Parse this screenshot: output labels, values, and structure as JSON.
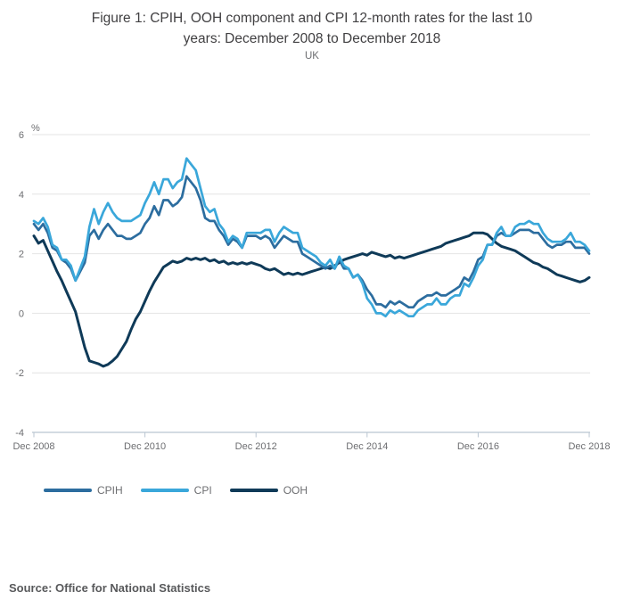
{
  "title": {
    "text": "Figure 1: CPIH, OOH component and CPI 12-month rates for the last 10 years: December 2008 to December 2018",
    "lines": [
      "Figure 1: CPIH, OOH component and CPI 12-month rates for the last 10",
      "years: December 2008 to December 2018"
    ]
  },
  "subtitle": "UK",
  "source": "Source: Office for National Statistics",
  "colors": {
    "cpih": "#2c6d9f",
    "cpi": "#3aa7da",
    "ooh": "#0f3a58",
    "gridline": "#e4e4e4",
    "axis": "#b9c5d1",
    "title_text": "#414042",
    "axis_text": "#6d6e71",
    "source_text": "#58595b"
  },
  "chart_data": {
    "type": "line",
    "title": "Figure 1: CPIH, OOH component and CPI 12-month rates for the last 10 years: December 2008 to December 2018",
    "subtitle": "UK",
    "ylabel": "%",
    "xlabel": "",
    "ylim": [
      -4,
      6
    ],
    "grid": "horizontal",
    "legend_position": "bottom-left",
    "x_start": "Dec 2008",
    "x_end": "Dec 2018",
    "x_frequency": "monthly",
    "x_tick_labels": [
      "Dec 2008",
      "Dec 2010",
      "Dec 2012",
      "Dec 2014",
      "Dec 2016",
      "Dec 2018"
    ],
    "y_ticks": [
      6,
      4,
      2,
      0,
      -2,
      -4
    ],
    "series": [
      {
        "name": "CPIH",
        "color": "#2c6d9f",
        "values": [
          3.0,
          2.8,
          3.0,
          2.7,
          2.2,
          2.1,
          1.8,
          1.7,
          1.5,
          1.1,
          1.4,
          1.7,
          2.6,
          2.8,
          2.5,
          2.8,
          3.0,
          2.8,
          2.6,
          2.6,
          2.5,
          2.5,
          2.6,
          2.7,
          3.0,
          3.2,
          3.6,
          3.3,
          3.8,
          3.8,
          3.6,
          3.7,
          3.9,
          4.6,
          4.4,
          4.2,
          3.8,
          3.2,
          3.1,
          3.1,
          2.8,
          2.6,
          2.3,
          2.5,
          2.4,
          2.2,
          2.6,
          2.6,
          2.6,
          2.5,
          2.6,
          2.5,
          2.2,
          2.4,
          2.6,
          2.5,
          2.4,
          2.4,
          2.0,
          1.9,
          1.8,
          1.7,
          1.6,
          1.5,
          1.6,
          1.5,
          1.8,
          1.5,
          1.5,
          1.2,
          1.3,
          1.1,
          0.8,
          0.6,
          0.3,
          0.3,
          0.2,
          0.4,
          0.3,
          0.4,
          0.3,
          0.2,
          0.2,
          0.4,
          0.5,
          0.6,
          0.6,
          0.7,
          0.6,
          0.6,
          0.7,
          0.8,
          0.9,
          1.2,
          1.1,
          1.4,
          1.8,
          1.9,
          2.3,
          2.3,
          2.6,
          2.7,
          2.6,
          2.6,
          2.7,
          2.8,
          2.8,
          2.8,
          2.7,
          2.7,
          2.5,
          2.3,
          2.2,
          2.3,
          2.3,
          2.4,
          2.4,
          2.2,
          2.2,
          2.2,
          2.0
        ]
      },
      {
        "name": "CPI",
        "color": "#3aa7da",
        "values": [
          3.1,
          3.0,
          3.2,
          2.9,
          2.3,
          2.2,
          1.8,
          1.8,
          1.6,
          1.1,
          1.5,
          1.9,
          2.9,
          3.5,
          3.0,
          3.4,
          3.7,
          3.4,
          3.2,
          3.1,
          3.1,
          3.1,
          3.2,
          3.3,
          3.7,
          4.0,
          4.4,
          4.0,
          4.5,
          4.5,
          4.2,
          4.4,
          4.5,
          5.2,
          5.0,
          4.8,
          4.2,
          3.6,
          3.4,
          3.5,
          3.0,
          2.8,
          2.4,
          2.6,
          2.5,
          2.2,
          2.7,
          2.7,
          2.7,
          2.7,
          2.8,
          2.8,
          2.4,
          2.7,
          2.9,
          2.8,
          2.7,
          2.7,
          2.2,
          2.1,
          2.0,
          1.9,
          1.7,
          1.6,
          1.8,
          1.5,
          1.9,
          1.6,
          1.5,
          1.2,
          1.3,
          1.0,
          0.5,
          0.3,
          0.0,
          0.0,
          -0.1,
          0.1,
          0.0,
          0.1,
          0.0,
          -0.1,
          -0.1,
          0.1,
          0.2,
          0.3,
          0.3,
          0.5,
          0.3,
          0.3,
          0.5,
          0.6,
          0.6,
          1.0,
          0.9,
          1.2,
          1.6,
          1.8,
          2.3,
          2.3,
          2.7,
          2.9,
          2.6,
          2.6,
          2.9,
          3.0,
          3.0,
          3.1,
          3.0,
          3.0,
          2.7,
          2.5,
          2.4,
          2.4,
          2.4,
          2.5,
          2.7,
          2.4,
          2.4,
          2.3,
          2.1
        ]
      },
      {
        "name": "OOH",
        "color": "#0f3a58",
        "values": [
          2.6,
          2.35,
          2.45,
          2.1,
          1.75,
          1.4,
          1.1,
          0.75,
          0.4,
          0.05,
          -0.55,
          -1.15,
          -1.6,
          -1.65,
          -1.7,
          -1.78,
          -1.72,
          -1.6,
          -1.45,
          -1.2,
          -0.95,
          -0.55,
          -0.2,
          0.05,
          0.4,
          0.75,
          1.05,
          1.3,
          1.55,
          1.65,
          1.75,
          1.7,
          1.75,
          1.85,
          1.8,
          1.85,
          1.8,
          1.85,
          1.75,
          1.8,
          1.7,
          1.75,
          1.65,
          1.7,
          1.65,
          1.7,
          1.65,
          1.7,
          1.65,
          1.6,
          1.5,
          1.45,
          1.5,
          1.4,
          1.3,
          1.35,
          1.3,
          1.35,
          1.3,
          1.35,
          1.4,
          1.45,
          1.5,
          1.55,
          1.5,
          1.6,
          1.7,
          1.8,
          1.85,
          1.9,
          1.95,
          2.0,
          1.95,
          2.05,
          2.0,
          1.95,
          1.9,
          1.95,
          1.85,
          1.9,
          1.85,
          1.9,
          1.95,
          2.0,
          2.05,
          2.1,
          2.15,
          2.2,
          2.25,
          2.35,
          2.4,
          2.45,
          2.5,
          2.55,
          2.6,
          2.7,
          2.7,
          2.7,
          2.65,
          2.5,
          2.35,
          2.25,
          2.2,
          2.15,
          2.1,
          2.0,
          1.9,
          1.8,
          1.7,
          1.65,
          1.55,
          1.5,
          1.4,
          1.3,
          1.25,
          1.2,
          1.15,
          1.1,
          1.05,
          1.1,
          1.2
        ]
      }
    ]
  }
}
